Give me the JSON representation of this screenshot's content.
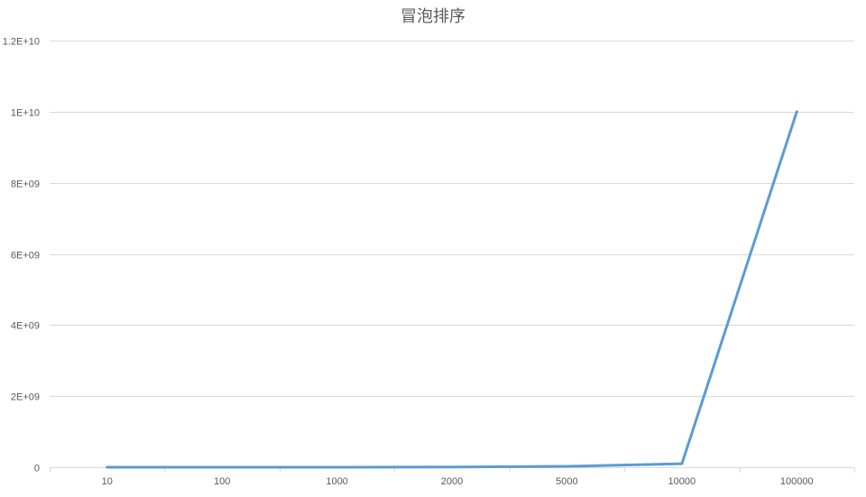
{
  "chart_data": {
    "type": "line",
    "title": "冒泡排序",
    "categories": [
      "10",
      "100",
      "1000",
      "2000",
      "5000",
      "10000",
      "100000"
    ],
    "series": [
      {
        "values": [
          100,
          10000,
          1000000,
          4000000,
          25000000,
          100000000,
          10000000000
        ]
      }
    ],
    "ylim": [
      0,
      12000000000
    ],
    "yticks": [
      0,
      2000000000,
      4000000000,
      6000000000,
      8000000000,
      10000000000,
      12000000000
    ],
    "ytick_labels": [
      "0",
      "2E+09",
      "4E+09",
      "6E+09",
      "8E+09",
      "1E+10",
      "1.2E+10"
    ],
    "grid": true,
    "legend": "none",
    "line_color": "#5B9BD5"
  }
}
